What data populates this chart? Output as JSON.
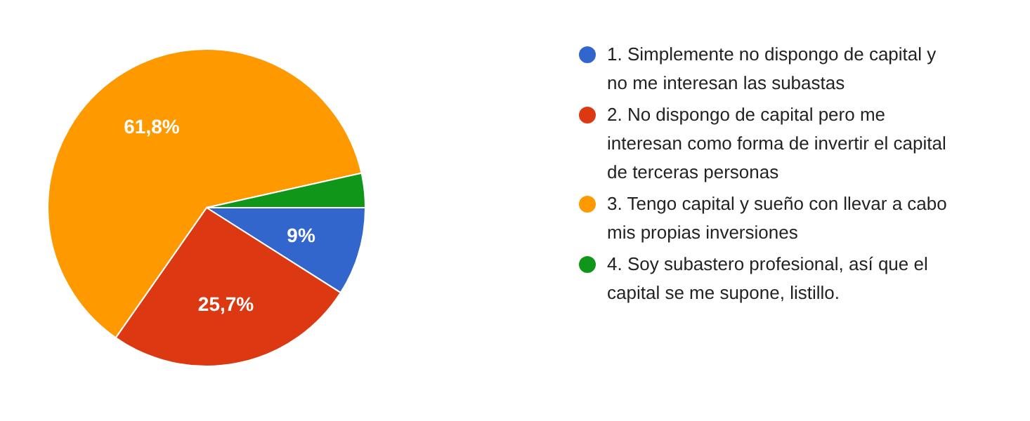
{
  "chart_data": {
    "type": "pie",
    "categories": [
      "1. Simplemente no dispongo de capital y no me interesan las subastas",
      "2. No dispongo de capital pero me interesan como forma de invertir el capital de terceras personas",
      "3. Tengo capital y sueño con llevar a cabo mis propias inversiones",
      "4. Soy subastero profesional, así que el capital se me supone, listillo."
    ],
    "values": [
      9,
      25.7,
      61.8,
      3.5
    ],
    "colors": [
      "#3366cc",
      "#dc3912",
      "#ff9900",
      "#109618"
    ],
    "value_labels": [
      "9%",
      "25,7%",
      "61,8%",
      null
    ],
    "legend": "right"
  }
}
